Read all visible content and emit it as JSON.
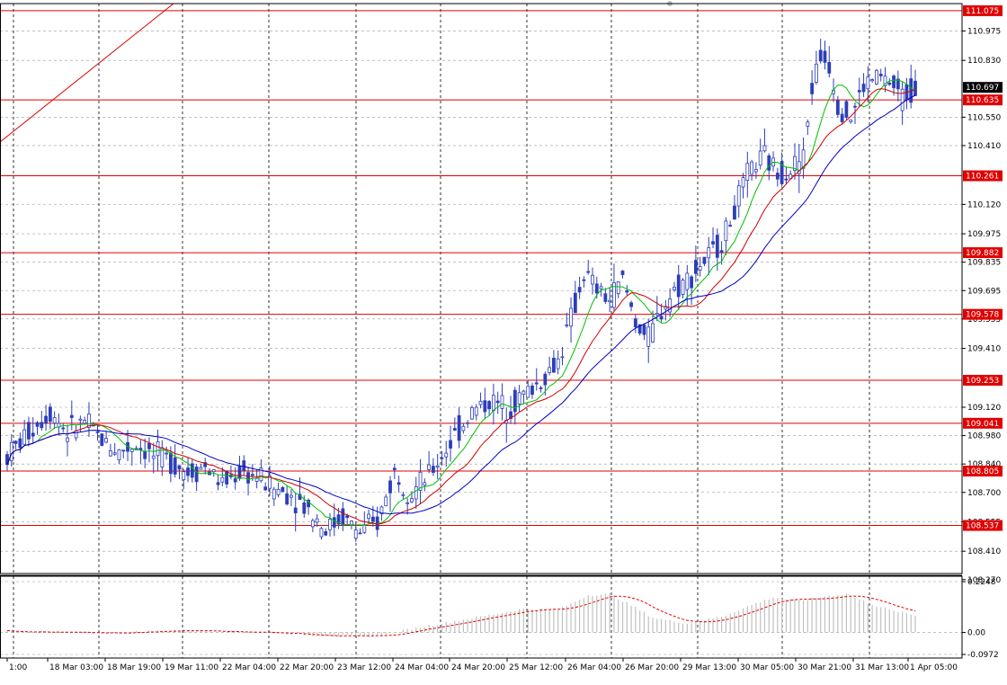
{
  "colors": {
    "background": "#ffffff",
    "grid": "#9a9a9a",
    "frame": "#000000",
    "candle": "#2c3fb8",
    "ma_fast": "#00c000",
    "ma_mid": "#d00000",
    "ma_slow": "#0000c8",
    "level_line": "#e00000",
    "level_label_bg": "#e00000",
    "level_label_text": "#ffffff",
    "current_label_bg": "#000000",
    "osc_bar": "#c0c0c0",
    "osc_line": "#e00000"
  },
  "chart_data": [
    {
      "type": "candlestick",
      "title": "",
      "ylim": [
        108.3,
        111.11
      ],
      "price_axis_ticks": [
        "110.975",
        "110.830",
        "110.550",
        "110.410",
        "110.120",
        "109.975",
        "109.835",
        "109.695",
        "109.555",
        "109.410",
        "109.120",
        "108.980",
        "108.840",
        "108.700",
        "108.555",
        "108.410",
        "108.270"
      ],
      "price_axis_tick_values": [
        110.975,
        110.83,
        110.55,
        110.41,
        110.12,
        109.975,
        109.835,
        109.695,
        109.555,
        109.41,
        109.12,
        108.98,
        108.84,
        108.7,
        108.555,
        108.41,
        108.27
      ],
      "current_price": "110.697",
      "current_price_value": 110.697,
      "levels": [
        {
          "label": "111.075",
          "value": 111.075
        },
        {
          "label": "110.635",
          "value": 110.635
        },
        {
          "label": "110.261",
          "value": 110.261
        },
        {
          "label": "109.882",
          "value": 109.882
        },
        {
          "label": "109.578",
          "value": 109.578
        },
        {
          "label": "109.253",
          "value": 109.253
        },
        {
          "label": "109.041",
          "value": 109.041
        },
        {
          "label": "108.805",
          "value": 108.805
        },
        {
          "label": "108.537",
          "value": 108.537
        }
      ],
      "time_labels": [
        "1:00",
        "18 Mar 03:00",
        "18 Mar 19:00",
        "19 Mar 11:00",
        "22 Mar 04:00",
        "22 Mar 20:00",
        "23 Mar 12:00",
        "24 Mar 04:00",
        "24 Mar 20:00",
        "25 Mar 12:00",
        "26 Mar 04:00",
        "26 Mar 20:00",
        "29 Mar 13:00",
        "30 Mar 05:00",
        "30 Mar 21:00",
        "31 Mar 13:00",
        "1 Apr 05:00"
      ],
      "price_path": [
        [
          0,
          108.88
        ],
        [
          6,
          109.02
        ],
        [
          10,
          109.1
        ],
        [
          14,
          109.0
        ],
        [
          18,
          109.05
        ],
        [
          22,
          108.96
        ],
        [
          26,
          108.9
        ],
        [
          30,
          108.94
        ],
        [
          34,
          108.88
        ],
        [
          38,
          108.86
        ],
        [
          42,
          108.8
        ],
        [
          46,
          108.83
        ],
        [
          50,
          108.74
        ],
        [
          54,
          108.8
        ],
        [
          58,
          108.78
        ],
        [
          62,
          108.72
        ],
        [
          66,
          108.69
        ],
        [
          70,
          108.62
        ],
        [
          74,
          108.52
        ],
        [
          78,
          108.58
        ],
        [
          82,
          108.5
        ],
        [
          86,
          108.55
        ],
        [
          90,
          108.8
        ],
        [
          94,
          108.7
        ],
        [
          98,
          108.78
        ],
        [
          100,
          108.85
        ],
        [
          104,
          108.98
        ],
        [
          108,
          109.1
        ],
        [
          112,
          109.15
        ],
        [
          116,
          109.12
        ],
        [
          120,
          109.18
        ],
        [
          124,
          109.25
        ],
        [
          128,
          109.35
        ],
        [
          131,
          109.55
        ],
        [
          134,
          109.78
        ],
        [
          137,
          109.7
        ],
        [
          140,
          109.65
        ],
        [
          143,
          109.75
        ],
        [
          146,
          109.55
        ],
        [
          149,
          109.45
        ],
        [
          152,
          109.6
        ],
        [
          155,
          109.7
        ],
        [
          158,
          109.75
        ],
        [
          161,
          109.82
        ],
        [
          164,
          109.88
        ],
        [
          167,
          109.98
        ],
        [
          170,
          110.15
        ],
        [
          173,
          110.3
        ],
        [
          176,
          110.35
        ],
        [
          179,
          110.28
        ],
        [
          182,
          110.3
        ],
        [
          185,
          110.35
        ],
        [
          187,
          110.7
        ],
        [
          189,
          110.85
        ],
        [
          191,
          110.82
        ],
        [
          193,
          110.62
        ],
        [
          196,
          110.55
        ],
        [
          199,
          110.7
        ],
        [
          202,
          110.75
        ],
        [
          205,
          110.72
        ],
        [
          208,
          110.65
        ],
        [
          211,
          110.697
        ]
      ]
    },
    {
      "type": "bar",
      "title": "",
      "ylim": [
        -0.0972,
        0.2248
      ],
      "axis_ticks": [
        "0.2248",
        "0.00",
        "-0.0972"
      ],
      "axis_tick_values": [
        0.2248,
        0.0,
        -0.0972
      ],
      "values_path": [
        [
          0,
          0.005
        ],
        [
          20,
          -0.004
        ],
        [
          40,
          0.01
        ],
        [
          60,
          0.0
        ],
        [
          70,
          -0.012
        ],
        [
          85,
          -0.018
        ],
        [
          95,
          0.02
        ],
        [
          110,
          0.07
        ],
        [
          120,
          0.105
        ],
        [
          128,
          0.1
        ],
        [
          135,
          0.165
        ],
        [
          140,
          0.17
        ],
        [
          145,
          0.12
        ],
        [
          150,
          0.065
        ],
        [
          158,
          0.04
        ],
        [
          166,
          0.07
        ],
        [
          172,
          0.115
        ],
        [
          178,
          0.155
        ],
        [
          184,
          0.14
        ],
        [
          190,
          0.16
        ],
        [
          195,
          0.17
        ],
        [
          200,
          0.13
        ],
        [
          206,
          0.095
        ],
        [
          211,
          0.075
        ]
      ]
    }
  ]
}
